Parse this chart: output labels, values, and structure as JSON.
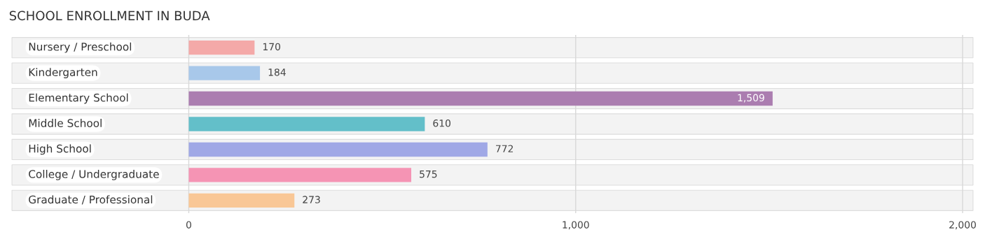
{
  "chart_data": {
    "type": "bar",
    "orientation": "horizontal",
    "title": "SCHOOL ENROLLMENT IN BUDA",
    "categories": [
      "Nursery / Preschool",
      "Kindergarten",
      "Elementary School",
      "Middle School",
      "High School",
      "College / Undergraduate",
      "Graduate / Professional"
    ],
    "values": [
      170,
      184,
      1509,
      610,
      772,
      575,
      273
    ],
    "value_labels": [
      "170",
      "184",
      "1,509",
      "610",
      "772",
      "575",
      "273"
    ],
    "colors": [
      "#f4a9a8",
      "#a8c8ea",
      "#ab7db0",
      "#63bfc9",
      "#a0a8e6",
      "#f594b4",
      "#f9c796"
    ],
    "xlim": [
      -465,
      2035
    ],
    "xticks": [
      {
        "value": 0,
        "label": "0"
      },
      {
        "value": 1000,
        "label": "1,000"
      },
      {
        "value": 2000,
        "label": "2,000"
      }
    ],
    "grid": "x"
  }
}
